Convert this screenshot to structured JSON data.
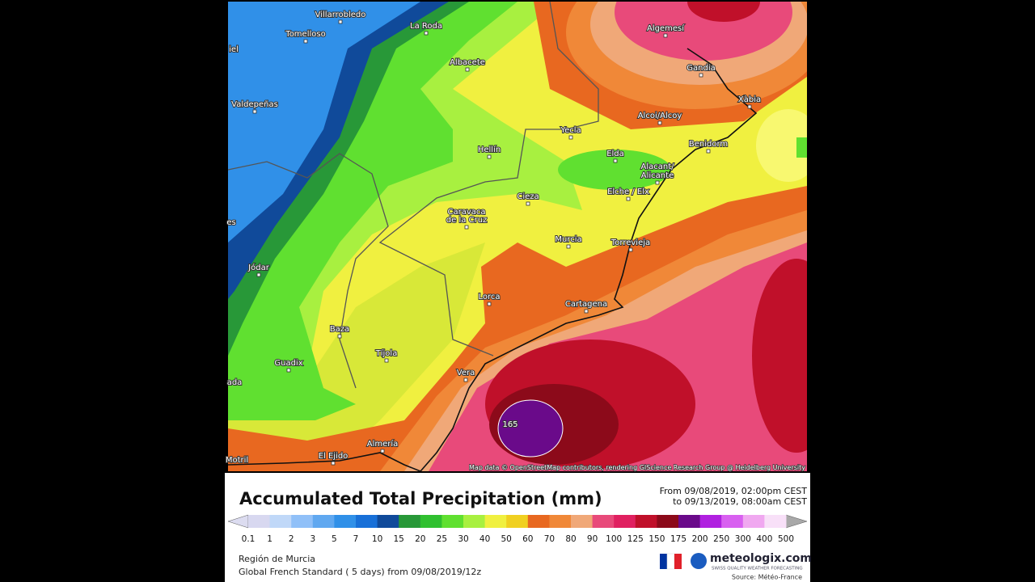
{
  "map": {
    "places": [
      "Villarrobledo",
      "La Roda",
      "Tomelloso",
      "iel",
      "Albacete",
      "Valdepeñas",
      "Algemesí",
      "Gandia",
      "Xàbia",
      "Alcoi/Alcoy",
      "Yecla",
      "Hellín",
      "Benidorm",
      "Elda",
      "Alacant/",
      "Alicante",
      "Elche / Elx",
      "Cieza",
      "Caravaca",
      "de la Cruz",
      "es",
      "Murcia",
      "Torrevieja",
      "Jódar",
      "Lorca",
      "Cartagena",
      "Baza",
      "Tíjola",
      "Guadix",
      "Vera",
      "ada",
      "Almería",
      "El Ejido",
      "Motril"
    ],
    "max_label": "165",
    "attribution": "Map data © OpenStreetMap contributors, rendering GIScience Research Group @ Heidelberg University"
  },
  "panel": {
    "title": "Accumulated Total Precipitation (mm)",
    "period_from": "From 09/08/2019, 02:00pm CEST",
    "period_to": "to 09/13/2019, 08:00am CEST",
    "region": "Región de Murcia",
    "model": "Global French Standard ( 5 days) from 09/08/2019/12z",
    "brand": "meteologix.com",
    "tagline": "SWISS QUALITY WEATHER FORECASTING",
    "source": "Source: Météo-France"
  },
  "legend": {
    "labels": [
      "0.1",
      "1",
      "2",
      "3",
      "5",
      "7",
      "10",
      "15",
      "20",
      "25",
      "30",
      "40",
      "50",
      "60",
      "70",
      "80",
      "90",
      "100",
      "125",
      "150",
      "175",
      "200",
      "250",
      "300",
      "400",
      "500"
    ],
    "colors": [
      "#d8d8f0",
      "#c0d8f8",
      "#90c0f8",
      "#60a8f0",
      "#3090e8",
      "#1870d8",
      "#104a9a",
      "#289838",
      "#30c030",
      "#60e030",
      "#a8f040",
      "#f0f040",
      "#f0d020",
      "#e86820",
      "#f08838",
      "#f0a878",
      "#e84a7a",
      "#e02060",
      "#c0102a",
      "#8c0a1a",
      "#6a0a8a",
      "#b020e0",
      "#d860f0",
      "#f0a8f0",
      "#f8e0f8"
    ],
    "low_color": "#dcdcf0",
    "high_color": "#a8a8a8"
  }
}
